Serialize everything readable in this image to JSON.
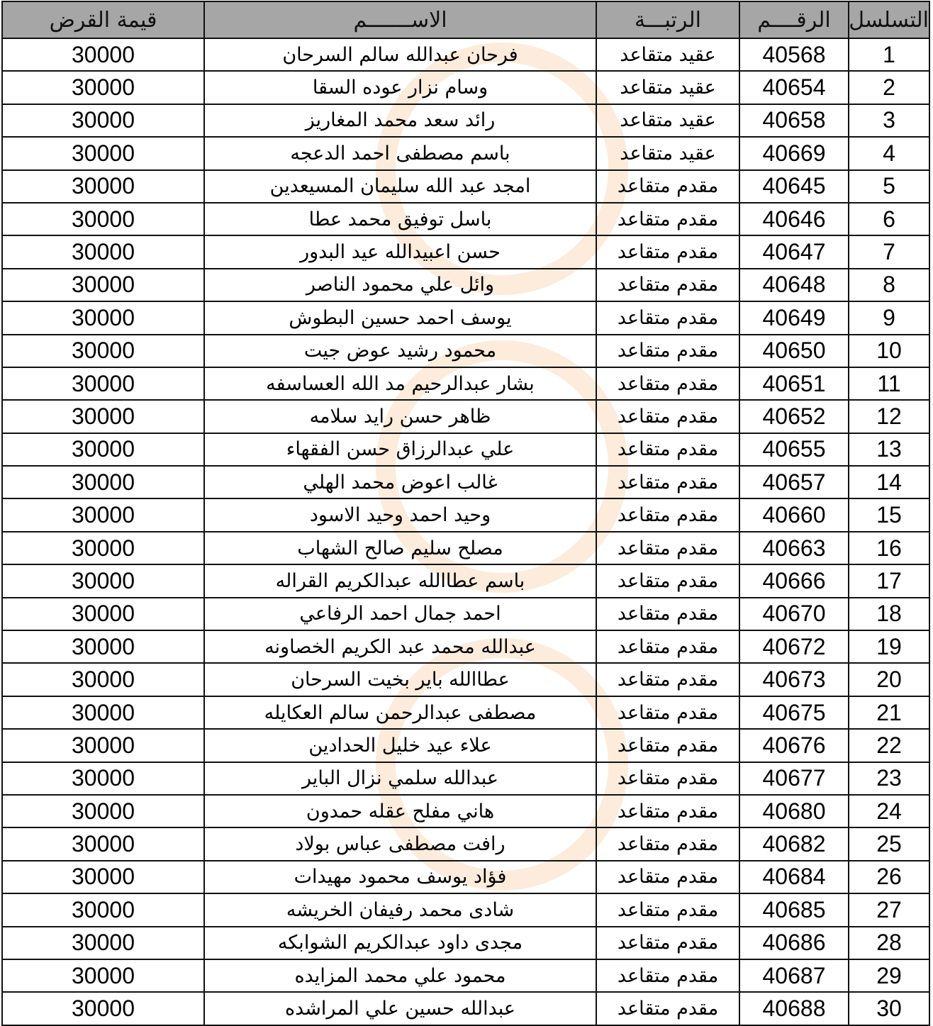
{
  "headers": {
    "serial": "التسلسل",
    "number": "الرقــــم",
    "rank": "الرتبـــة",
    "name": "الاســـــــم",
    "loan": "قيمة القرض"
  },
  "rows": [
    {
      "serial": "1",
      "number": "40568",
      "rank": "عقيد متقاعد",
      "name": "فرحان عبدالله سالم السرحان",
      "loan": "30000"
    },
    {
      "serial": "2",
      "number": "40654",
      "rank": "عقيد متقاعد",
      "name": "وسام نزار عوده السقا",
      "loan": "30000"
    },
    {
      "serial": "3",
      "number": "40658",
      "rank": "عقيد متقاعد",
      "name": "رائد سعد محمد المغاريز",
      "loan": "30000"
    },
    {
      "serial": "4",
      "number": "40669",
      "rank": "عقيد متقاعد",
      "name": "باسم مصطفى احمد الدعجه",
      "loan": "30000"
    },
    {
      "serial": "5",
      "number": "40645",
      "rank": "مقدم متقاعد",
      "name": "امجد عبد الله سليمان المسيعدين",
      "loan": "30000"
    },
    {
      "serial": "6",
      "number": "40646",
      "rank": "مقدم متقاعد",
      "name": "باسل توفيق محمد عطا",
      "loan": "30000"
    },
    {
      "serial": "7",
      "number": "40647",
      "rank": "مقدم متقاعد",
      "name": "حسن اعبيدالله عيد البدور",
      "loan": "30000"
    },
    {
      "serial": "8",
      "number": "40648",
      "rank": "مقدم متقاعد",
      "name": "وائل علي محمود الناصر",
      "loan": "30000"
    },
    {
      "serial": "9",
      "number": "40649",
      "rank": "مقدم متقاعد",
      "name": "يوسف احمد حسين البطوش",
      "loan": "30000"
    },
    {
      "serial": "10",
      "number": "40650",
      "rank": "مقدم متقاعد",
      "name": "محمود رشيد عوض جيت",
      "loan": "30000"
    },
    {
      "serial": "11",
      "number": "40651",
      "rank": "مقدم متقاعد",
      "name": "بشار عبدالرحيم مد الله العساسفه",
      "loan": "30000"
    },
    {
      "serial": "12",
      "number": "40652",
      "rank": "مقدم متقاعد",
      "name": "ظاهر حسن رايد سلامه",
      "loan": "30000"
    },
    {
      "serial": "13",
      "number": "40655",
      "rank": "مقدم متقاعد",
      "name": "علي عبدالرزاق حسن الفقهاء",
      "loan": "30000"
    },
    {
      "serial": "14",
      "number": "40657",
      "rank": "مقدم متقاعد",
      "name": "غالب اعوض محمد الهلي",
      "loan": "30000"
    },
    {
      "serial": "15",
      "number": "40660",
      "rank": "مقدم متقاعد",
      "name": "وحيد احمد وحيد الاسود",
      "loan": "30000"
    },
    {
      "serial": "16",
      "number": "40663",
      "rank": "مقدم متقاعد",
      "name": "مصلح سليم صالح الشهاب",
      "loan": "30000"
    },
    {
      "serial": "17",
      "number": "40666",
      "rank": "مقدم متقاعد",
      "name": "باسم عطاالله عبدالكريم القراله",
      "loan": "30000"
    },
    {
      "serial": "18",
      "number": "40670",
      "rank": "مقدم متقاعد",
      "name": "احمد جمال احمد الرفاعي",
      "loan": "30000"
    },
    {
      "serial": "19",
      "number": "40672",
      "rank": "مقدم متقاعد",
      "name": "عبدالله محمد عبد الكريم الخصاونه",
      "loan": "30000"
    },
    {
      "serial": "20",
      "number": "40673",
      "rank": "مقدم متقاعد",
      "name": "عطاالله باير بخيت السرحان",
      "loan": "30000"
    },
    {
      "serial": "21",
      "number": "40675",
      "rank": "مقدم متقاعد",
      "name": "مصطفى عبدالرحمن سالم العكايله",
      "loan": "30000"
    },
    {
      "serial": "22",
      "number": "40676",
      "rank": "مقدم متقاعد",
      "name": "علاء عيد خليل الحدادين",
      "loan": "30000"
    },
    {
      "serial": "23",
      "number": "40677",
      "rank": "مقدم متقاعد",
      "name": "عبدالله سلمي نزال الباير",
      "loan": "30000"
    },
    {
      "serial": "24",
      "number": "40680",
      "rank": "مقدم متقاعد",
      "name": "هاني مفلح عقله حمدون",
      "loan": "30000"
    },
    {
      "serial": "25",
      "number": "40682",
      "rank": "مقدم متقاعد",
      "name": "رافت مصطفى عباس بولاد",
      "loan": "30000"
    },
    {
      "serial": "26",
      "number": "40684",
      "rank": "مقدم متقاعد",
      "name": "فؤاد يوسف محمود مهيدات",
      "loan": "30000"
    },
    {
      "serial": "27",
      "number": "40685",
      "rank": "مقدم متقاعد",
      "name": "شادى محمد رفيفان الخريشه",
      "loan": "30000"
    },
    {
      "serial": "28",
      "number": "40686",
      "rank": "مقدم متقاعد",
      "name": "مجدى داود عبدالكريم الشوابكه",
      "loan": "30000"
    },
    {
      "serial": "29",
      "number": "40687",
      "rank": "مقدم متقاعد",
      "name": "محمود علي محمد المزايده",
      "loan": "30000"
    },
    {
      "serial": "30",
      "number": "40688",
      "rank": "مقدم متقاعد",
      "name": "عبدالله حسين علي المراشده",
      "loan": "30000"
    }
  ],
  "colors": {
    "header_bg": "#a6a6a6",
    "grid": "#111111",
    "watermark": "#f5aa5a"
  }
}
